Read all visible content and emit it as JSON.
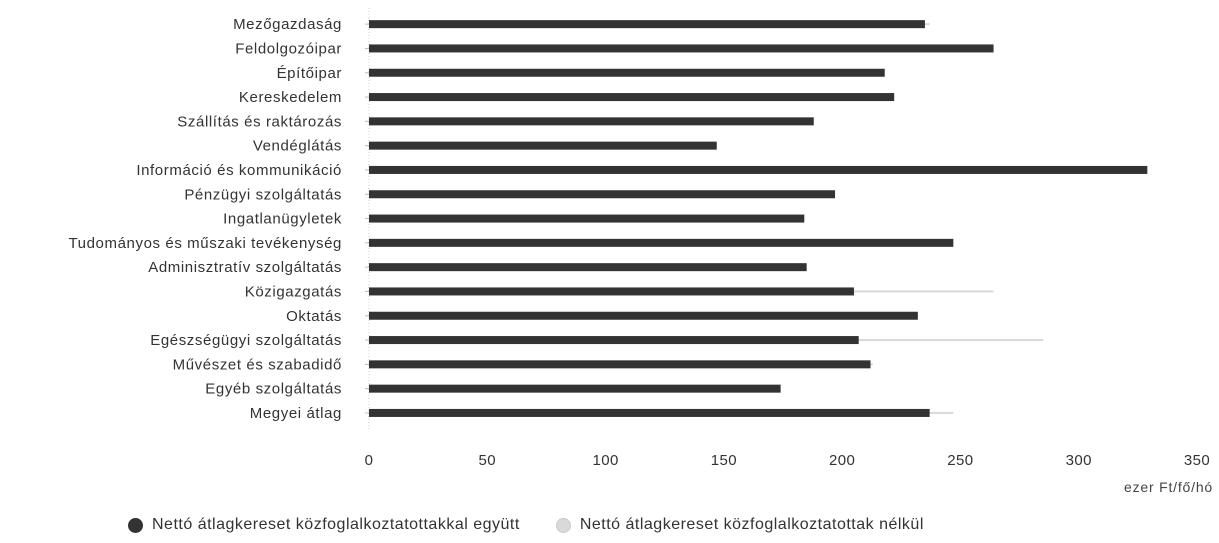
{
  "chart_data": {
    "type": "bar",
    "orientation": "horizontal",
    "categories": [
      "Mezőgazdaság",
      "Feldolgozóipar",
      "Építőipar",
      "Kereskedelem",
      "Szállítás és raktározás",
      "Vendéglátás",
      "Információ és kommunikáció",
      "Pénzügyi szolgáltatás",
      "Ingatlanügyletek",
      "Tudományos és műszaki tevékenység",
      "Adminisztratív szolgáltatás",
      "Közigazgatás",
      "Oktatás",
      "Egészségügyi szolgáltatás",
      "Művészet és szabadidő",
      "Egyéb szolgáltatás",
      "Megyei átlag"
    ],
    "series": [
      {
        "name": "Nettó átlagkereset közfoglalkoztatottakkal együtt",
        "color": "#333333",
        "values": [
          235,
          264,
          218,
          222,
          188,
          147,
          329,
          197,
          184,
          247,
          185,
          205,
          232,
          207,
          212,
          174,
          237
        ]
      },
      {
        "name": "Nettó átlagkereset közfoglalkoztatottak nélkül",
        "color": "#d9d9d9",
        "values": [
          237,
          264,
          218,
          222,
          188,
          147,
          329,
          197,
          184,
          247,
          185,
          264,
          232,
          285,
          213,
          174,
          247
        ]
      }
    ],
    "xlim": [
      0,
      350
    ],
    "xticks": [
      "0",
      "50",
      "100",
      "150",
      "200",
      "250",
      "300",
      "350"
    ],
    "xlabel": "ezer Ft/fő/hó",
    "ylabel": "",
    "title": "",
    "grid": false,
    "legend_position": "bottom"
  }
}
